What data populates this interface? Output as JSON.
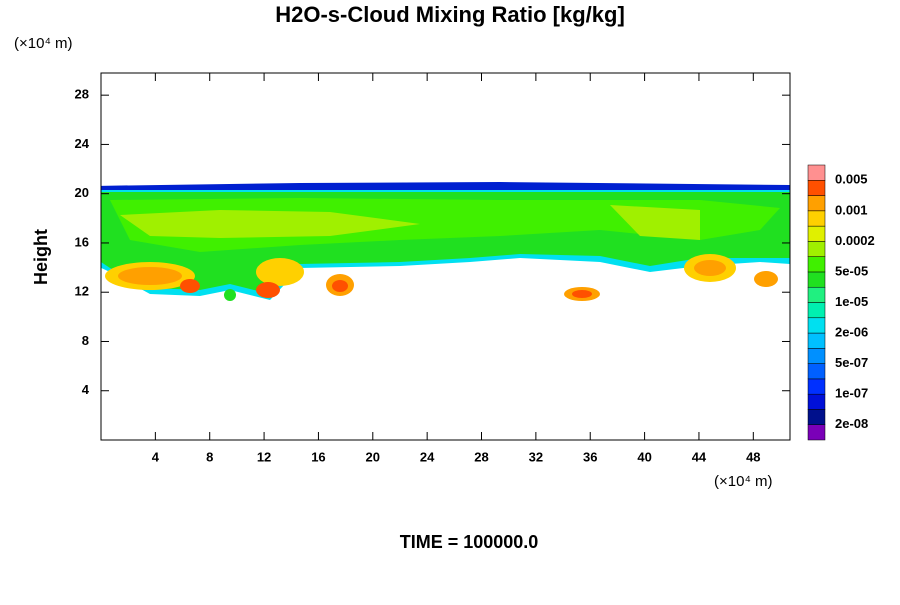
{
  "chart_data": {
    "type": "contour",
    "title": "H2O-s-Cloud Mixing Ratio [kg/kg]",
    "y_unit": "(×10⁴ m)",
    "x_unit": "(×10⁴ m)",
    "ylabel": "Height",
    "footer": "TIME = 100000.0",
    "xlim": [
      0,
      50.7
    ],
    "xticks": [
      4,
      8,
      12,
      16,
      20,
      24,
      28,
      32,
      36,
      40,
      44,
      48
    ],
    "ylim": [
      0,
      29.8
    ],
    "yticks": [
      4,
      8,
      12,
      16,
      20,
      24,
      28
    ],
    "colorbar": {
      "colors": [
        "#7a00b8",
        "#00108c",
        "#0010d8",
        "#0030ff",
        "#0060ff",
        "#0090ff",
        "#00c0ff",
        "#00e0f0",
        "#00f0b0",
        "#20f080",
        "#20e020",
        "#40f000",
        "#a0f000",
        "#e0f000",
        "#ffd000",
        "#ffa000",
        "#ff5000",
        "#ff9090"
      ],
      "labels": [
        {
          "value": 2e-08,
          "label": "2e-08"
        },
        {
          "value": 1e-07,
          "label": "1e-07"
        },
        {
          "value": 5e-07,
          "label": "5e-07"
        },
        {
          "value": 2e-06,
          "label": "2e-06"
        },
        {
          "value": 1e-05,
          "label": "1e-05"
        },
        {
          "value": 5e-05,
          "label": "5e-05"
        },
        0.0002,
        0.001,
        0.005
      ]
    }
  }
}
